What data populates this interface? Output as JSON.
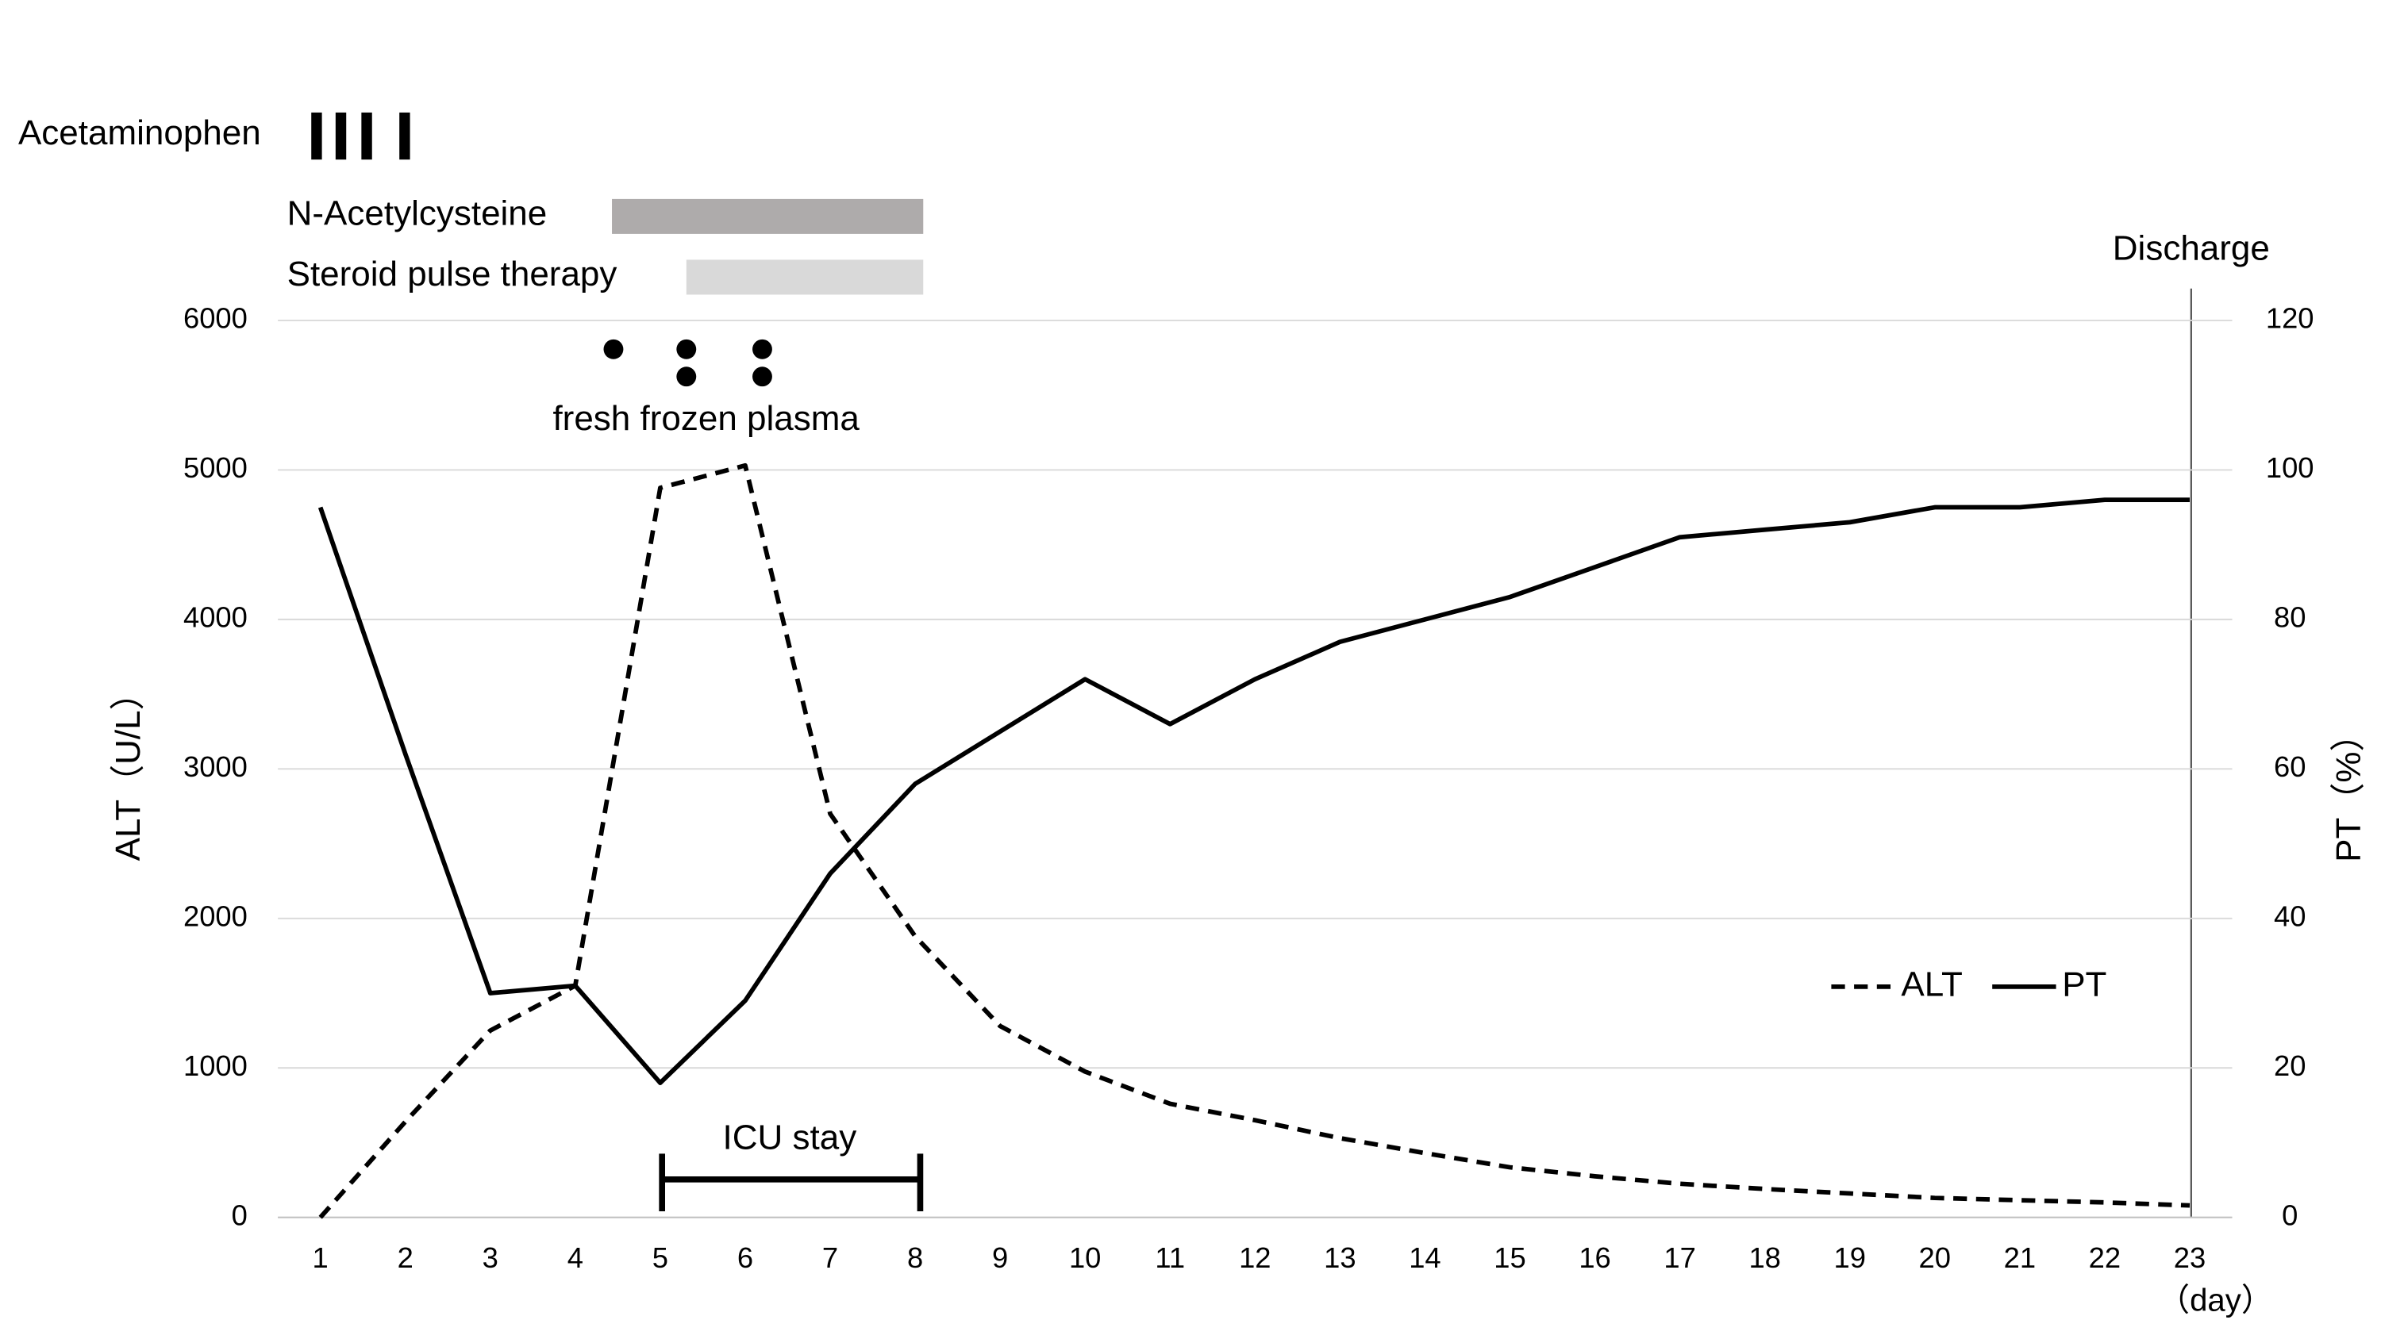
{
  "chart_data": {
    "type": "line",
    "annotations": {
      "acetaminophen": "Acetaminophen",
      "nac": "N-Acetylcysteine",
      "steroid": "Steroid pulse therapy",
      "ffp": "fresh frozen plasma",
      "icu": "ICU stay",
      "discharge": "Discharge"
    },
    "xlabel": "（day）",
    "ylabel": "ALT（U/L）",
    "y2label": "PT（%）",
    "x": [
      1,
      2,
      3,
      4,
      5,
      6,
      7,
      8,
      9,
      10,
      11,
      12,
      13,
      14,
      15,
      16,
      17,
      18,
      19,
      20,
      21,
      22,
      23
    ],
    "xlim": [
      0.5,
      23.5
    ],
    "xticks": [
      1,
      2,
      3,
      4,
      5,
      6,
      7,
      8,
      9,
      10,
      11,
      12,
      13,
      14,
      15,
      16,
      17,
      18,
      19,
      20,
      21,
      22,
      23
    ],
    "ylim": [
      0,
      6000
    ],
    "yticks": [
      0,
      1000,
      2000,
      3000,
      4000,
      5000,
      6000
    ],
    "y2lim": [
      0,
      120
    ],
    "y2ticks": [
      0,
      20,
      40,
      60,
      80,
      100,
      120
    ],
    "grid": true,
    "legend": "lower right",
    "series": [
      {
        "name": "ALT",
        "color": "#000000",
        "dash": true,
        "values": [
          0,
          640,
          1250,
          1550,
          4880,
          5030,
          2700,
          1880,
          1280,
          975,
          760,
          650,
          530,
          430,
          335,
          275,
          225,
          190,
          160,
          130,
          115,
          100,
          80
        ]
      },
      {
        "name": "PT",
        "color": "#000000",
        "dash": false,
        "axis": "y2",
        "values": [
          95,
          62,
          30,
          31,
          18,
          29,
          46,
          58,
          65,
          72,
          66,
          72,
          77,
          80,
          83,
          87,
          91,
          92,
          93,
          95,
          95,
          96,
          96
        ]
      }
    ]
  }
}
